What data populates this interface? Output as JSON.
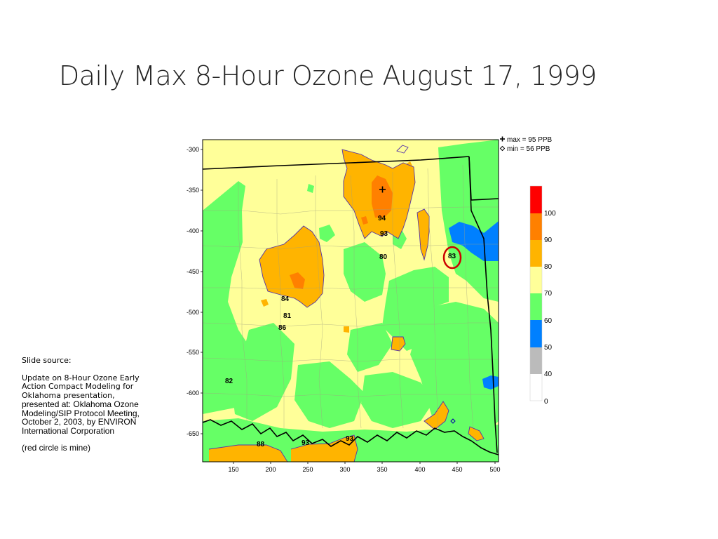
{
  "slide": {
    "title": "Daily Max 8-Hour Ozone August 17, 1999",
    "source_heading": "Slide source:",
    "source_body_1": "Update on 8-Hour Ozone Early Action Compact Modeling for Oklahoma presentation,",
    "source_body_2": "presented at: Oklahoma Ozone Modeling/SIP Protocol Meeting, October 2, 2003, by ENVIRON International Corporation",
    "note": "(red circle is mine)"
  },
  "map": {
    "x_ticks": [
      "150",
      "200",
      "250",
      "300",
      "350",
      "400",
      "450",
      "500"
    ],
    "y_ticks": [
      "-300",
      "-350",
      "-400",
      "-450",
      "-500",
      "-550",
      "-600",
      "-650"
    ],
    "max_label": "max = 95 PPB",
    "min_label": "min = 56 PPB",
    "values": [
      {
        "text": "94"
      },
      {
        "text": "93"
      },
      {
        "text": "80"
      },
      {
        "text": "83"
      },
      {
        "text": "84"
      },
      {
        "text": "81"
      },
      {
        "text": "86"
      },
      {
        "text": "82"
      },
      {
        "text": "88"
      },
      {
        "text": "93"
      },
      {
        "text": "93"
      }
    ]
  },
  "legend": {
    "levels": [
      "100",
      "90",
      "80",
      "70",
      "60",
      "50",
      "40",
      "0"
    ],
    "colors": [
      "#ff0000",
      "#ff8000",
      "#ffb400",
      "#ffff99",
      "#66ff66",
      "#0080ff",
      "#bbbbbb",
      "#ffffff"
    ]
  },
  "colors": {
    "annotation_circle": "#cc0000"
  }
}
